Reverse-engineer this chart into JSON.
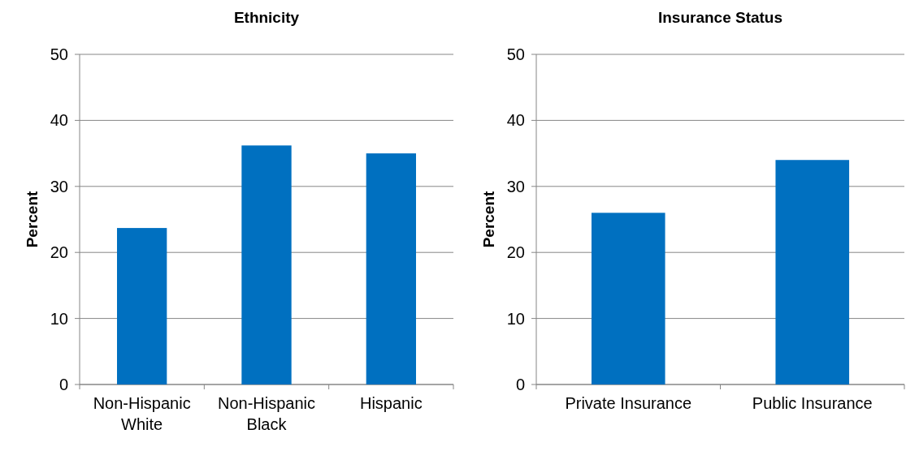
{
  "chart_data": [
    {
      "type": "bar",
      "title": "Ethnicity",
      "ylabel": "Percent",
      "categories": [
        "Non-Hispanic White",
        "Non-Hispanic Black",
        "Hispanic"
      ],
      "values": [
        23.7,
        36.2,
        35.0
      ],
      "color": "#0070c0",
      "ylim": [
        0,
        50
      ],
      "yticks": [
        0,
        10,
        20,
        30,
        40,
        50
      ],
      "grid": "y"
    },
    {
      "type": "bar",
      "title": "Insurance Status",
      "ylabel": "Percent",
      "categories": [
        "Private Insurance",
        "Public Insurance"
      ],
      "values": [
        26.0,
        34.0
      ],
      "color": "#0070c0",
      "ylim": [
        0,
        50
      ],
      "yticks": [
        0,
        10,
        20,
        30,
        40,
        50
      ],
      "grid": "y"
    }
  ]
}
